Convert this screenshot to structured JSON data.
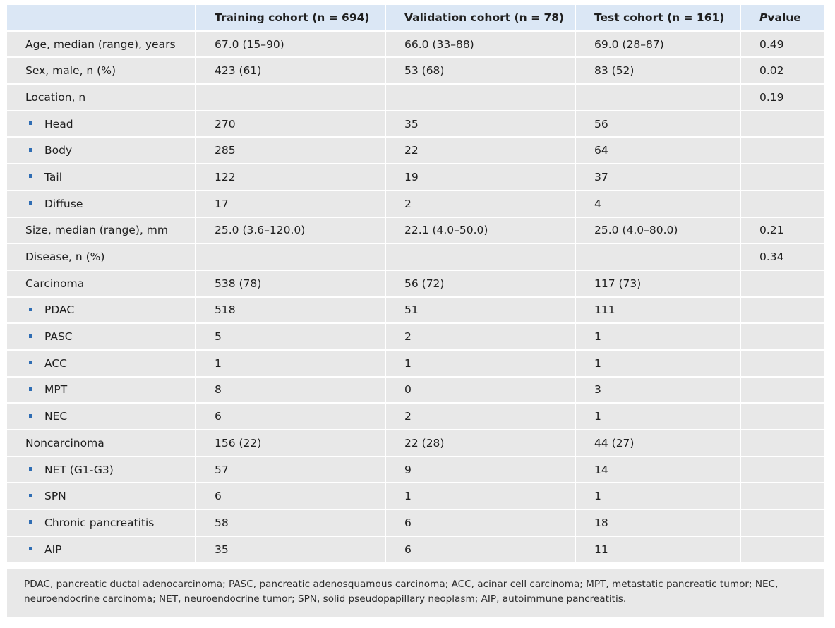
{
  "table": {
    "headers": [
      "",
      "Training cohort (n = 694)",
      "Validation cohort (n = 78)",
      "Test cohort (n = 161)",
      "P value"
    ],
    "pvalue_italic": "P",
    "pvalue_rest": " value",
    "rows": [
      {
        "label": "Age, median (range), years",
        "bullet": false,
        "c1": "67.0 (15–90)",
        "c2": "66.0 (33–88)",
        "c3": "69.0 (28–87)",
        "p": "0.49"
      },
      {
        "label": "Sex, male, n (%)",
        "bullet": false,
        "c1": "423 (61)",
        "c2": "53 (68)",
        "c3": "83 (52)",
        "p": "0.02"
      },
      {
        "label": "Location, n",
        "bullet": false,
        "c1": "",
        "c2": "",
        "c3": "",
        "p": "0.19"
      },
      {
        "label": "Head",
        "bullet": true,
        "c1": "270",
        "c2": "35",
        "c3": "56",
        "p": ""
      },
      {
        "label": "Body",
        "bullet": true,
        "c1": "285",
        "c2": "22",
        "c3": "64",
        "p": ""
      },
      {
        "label": "Tail",
        "bullet": true,
        "c1": "122",
        "c2": "19",
        "c3": "37",
        "p": ""
      },
      {
        "label": "Diffuse",
        "bullet": true,
        "c1": "17",
        "c2": "2",
        "c3": "4",
        "p": ""
      },
      {
        "label": "Size, median (range), mm",
        "bullet": false,
        "c1": "25.0 (3.6–120.0)",
        "c2": "22.1 (4.0–50.0)",
        "c3": "25.0 (4.0–80.0)",
        "p": "0.21"
      },
      {
        "label": "Disease, n (%)",
        "bullet": false,
        "c1": "",
        "c2": "",
        "c3": "",
        "p": "0.34"
      },
      {
        "label": "Carcinoma",
        "bullet": false,
        "c1": "538 (78)",
        "c2": "56 (72)",
        "c3": "117 (73)",
        "p": ""
      },
      {
        "label": "PDAC",
        "bullet": true,
        "c1": "518",
        "c2": "51",
        "c3": "111",
        "p": ""
      },
      {
        "label": "PASC",
        "bullet": true,
        "c1": "5",
        "c2": "2",
        "c3": "1",
        "p": ""
      },
      {
        "label": "ACC",
        "bullet": true,
        "c1": "1",
        "c2": "1",
        "c3": "1",
        "p": ""
      },
      {
        "label": "MPT",
        "bullet": true,
        "c1": "8",
        "c2": "0",
        "c3": "3",
        "p": ""
      },
      {
        "label": "NEC",
        "bullet": true,
        "c1": "6",
        "c2": "2",
        "c3": "1",
        "p": ""
      },
      {
        "label": "Noncarcinoma",
        "bullet": false,
        "c1": "156 (22)",
        "c2": "22 (28)",
        "c3": "44 (27)",
        "p": ""
      },
      {
        "label": "NET (G1-G3)",
        "bullet": true,
        "c1": "57",
        "c2": "9",
        "c3": "14",
        "p": ""
      },
      {
        "label": "SPN",
        "bullet": true,
        "c1": "6",
        "c2": "1",
        "c3": "1",
        "p": ""
      },
      {
        "label": "Chronic pancreatitis",
        "bullet": true,
        "c1": "58",
        "c2": "6",
        "c3": "18",
        "p": ""
      },
      {
        "label": "AIP",
        "bullet": true,
        "c1": "35",
        "c2": "6",
        "c3": "11",
        "p": ""
      }
    ]
  },
  "footnote": "PDAC, pancreatic ductal adenocarcinoma; PASC, pancreatic adenosquamous carcinoma; ACC, acinar cell carcinoma; MPT, metastatic pancreatic tumor; NEC, neuroendocrine carcinoma; NET, neuroendocrine tumor; SPN, solid pseudopapillary neoplasm; AIP, autoimmune pancreatitis.",
  "colors": {
    "header_bg": "#dbe7f5",
    "cell_bg": "#e8e8e8",
    "bullet": "#2f6db3"
  }
}
